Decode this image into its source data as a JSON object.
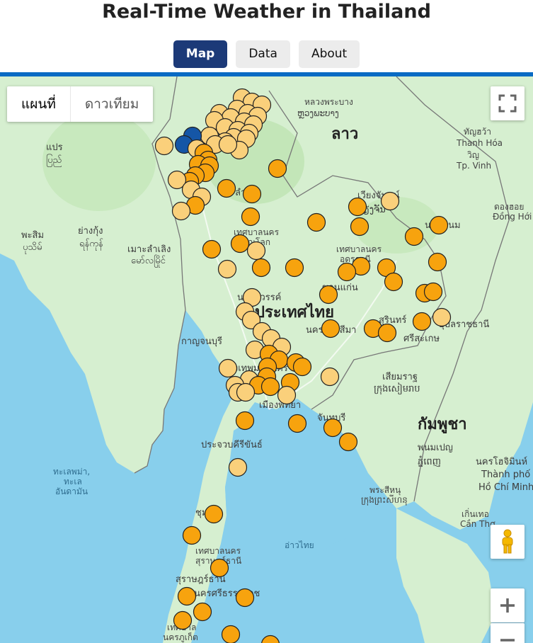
{
  "header": {
    "title": "Real-Time Weather in Thailand"
  },
  "nav": {
    "tabs": [
      {
        "label": "Map"
      },
      {
        "label": "Data"
      },
      {
        "label": "About"
      }
    ],
    "active": "Map"
  },
  "map": {
    "type_control": {
      "map": "แผนที่",
      "satellite": "ดาวเทียม"
    },
    "labels": {
      "laos": "ลาว",
      "luang_prabang_th": "หลวงพระบาง",
      "luang_prabang_lo": "ຫຼວງພະບາງ",
      "thanh_hoa_th": "ทัญฮว้า",
      "thanh_hoa_vi": "Thanh Hóa",
      "vinh_th": "วิญ",
      "vinh_vi": "Tp. Vinh",
      "prae": "แปร",
      "prae_my": "ပြည်",
      "pasim": "พะสิม",
      "pasim_my": "ပုသိမ်",
      "yangon": "ย่างกุ้ง",
      "yangon_my": "ရန်ကုန်",
      "mawlamyine": "เมาะลำเลิง",
      "mawlamyine_my": "မော်လမြိုင်",
      "vientiane": "เวียงจันทน์",
      "vientiane_lo": "ວຽງຈັນ",
      "dong_hoi_th": "ดองฮอย",
      "dong_hoi_vi": "Đồng Hới",
      "thailand": "ประเทศไทย",
      "cambodia": "กัมพูชา",
      "phnom_penh": "พนมเปญ",
      "phnom_penh_km": "ភ្នំពេញ",
      "siem_reap": "เสียมราฐ",
      "siem_reap_km": "ក្រុងសៀមរាប",
      "hcmc_th": "นครโฮจิมินห์",
      "hcmc_vi_1": "Thành phố",
      "hcmc_vi_2": "Hồ Chí Minh",
      "can_tho_th": "เกิ่นเทอ",
      "can_tho_vi": "Cần Thơ",
      "sihanoukville": "พระสีหนุ",
      "sihanoukville_km": "ក្រុងព្រះសីហនុ",
      "andaman_1": "ทะเลพม่า,",
      "andaman_2": "ทะเล",
      "andaman_3": "อันดามัน",
      "gulf": "อ่าวไทย",
      "kanchanaburi": "กาญจนบุรี",
      "pattaya": "เมืองพัทยา",
      "chanthaburi": "จันทบุรี",
      "prachuap": "ประจวบคีรีขันธ์",
      "surat_1": "เทศบาลนคร",
      "surat_2": "สุราษฎร์ธานี",
      "surat_prov": "สุราษฎร์ธานี",
      "nakhon_si": "นครศรีธรรมราช",
      "phuket_1": "เทศบาล",
      "phuket_2": "นครภูเก็ต",
      "ubon": "อุบลราชธานี",
      "sisaket": "ศรีสะเกษ",
      "surin": "สุรินทร์",
      "khon_kaen": "ขอนแก่น",
      "udon_1": "เทศบาลนคร",
      "udon_2": "อุดรธานี",
      "nakhon_sawan": "นครสวรรค์",
      "phitsanulok_1": "เทศบาลนคร",
      "phitsanulok_2": "พิษณุโลก",
      "nakhon_ratchasima": "นครราชสีมา",
      "bangkok": "กรุงเทพมหานคร",
      "sakon": "นครพนม",
      "lampang": "ลำปาง",
      "chumphon": "ชุมพร"
    }
  },
  "colors": {
    "hot": "#f7a30e",
    "warm": "#fad07b",
    "cool": "#1556a6",
    "marker_stroke": "#222222",
    "land": "#d8f0d3",
    "land_dark": "#bfe4b4",
    "water": "#88cfec",
    "nav_active": "#1c3a78",
    "top_bar": "#0a6bc4"
  },
  "markers": {
    "count": 0
  }
}
